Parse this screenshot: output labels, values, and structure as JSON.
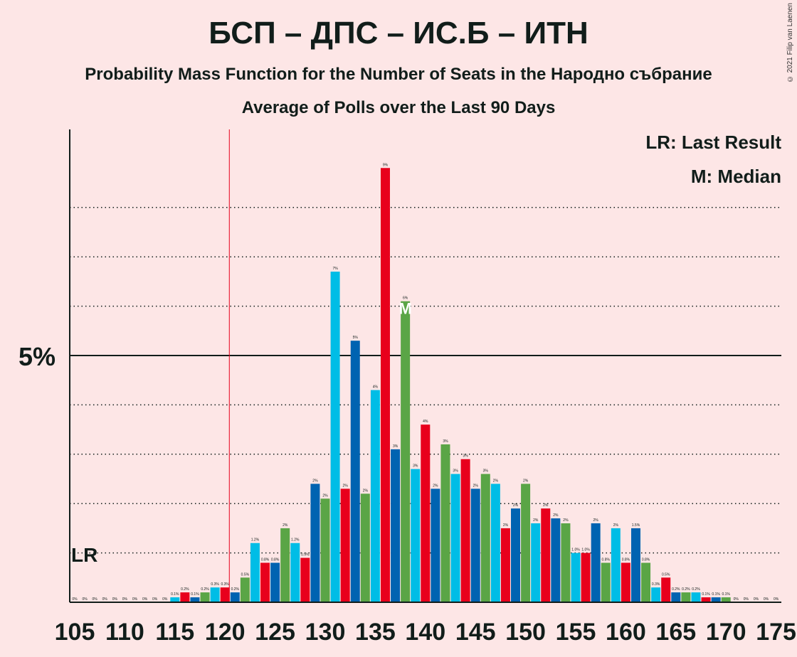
{
  "title": "БСП – ДПС – ИС.Б – ИТН",
  "subtitle": "Probability Mass Function for the Number of Seats in the Народно събрание",
  "subtitle2": "Average of Polls over the Last 90 Days",
  "copyright": "© 2021 Filip van Laenen",
  "legend": {
    "lr": "LR: Last Result",
    "median": "M: Median"
  },
  "colors": {
    "red": "#e8001c",
    "blue": "#0063b1",
    "cyan": "#00bde6",
    "green": "#5aa546",
    "background": "#fde6e6",
    "axis": "#111d1a",
    "last_result_line": "#e8001c"
  },
  "chart_data": {
    "type": "bar",
    "x": [
      105,
      106,
      107,
      108,
      109,
      110,
      111,
      112,
      113,
      114,
      115,
      116,
      117,
      118,
      119,
      120,
      121,
      122,
      123,
      124,
      125,
      126,
      127,
      128,
      129,
      130,
      131,
      132,
      133,
      134,
      135,
      136,
      137,
      138,
      139,
      140,
      141,
      142,
      143,
      144,
      145,
      146,
      147,
      148,
      149,
      150,
      151,
      152,
      153,
      154,
      155,
      156,
      157,
      158,
      159,
      160,
      161,
      162,
      163,
      164,
      165,
      166,
      167,
      168,
      169,
      170,
      171,
      172,
      173,
      174,
      175
    ],
    "values": [
      0,
      0,
      0,
      0,
      0,
      0,
      0,
      0,
      0,
      0,
      0.1,
      0.2,
      0.1,
      0.2,
      0.3,
      0.3,
      0.2,
      0.5,
      1.2,
      0.8,
      0.8,
      1.5,
      1.2,
      0.9,
      2.4,
      2.1,
      6.7,
      2.3,
      5.3,
      2.2,
      4.3,
      8.8,
      3.1,
      6.1,
      2.7,
      3.6,
      2.3,
      3.2,
      2.6,
      2.9,
      2.3,
      2.6,
      2.4,
      1.5,
      1.9,
      2.4,
      1.6,
      1.9,
      1.7,
      1.6,
      1.0,
      1.0,
      1.6,
      0.8,
      1.5,
      0.8,
      1.5,
      0.8,
      0.3,
      0.5,
      0.2,
      0.2,
      0.2,
      0.1,
      0.1,
      0.1,
      0,
      0,
      0,
      0,
      0
    ],
    "labels": [
      "0%",
      "0%",
      "0%",
      "0%",
      "0%",
      "0%",
      "0%",
      "0%",
      "0%",
      "0%",
      "0.1%",
      "0.2%",
      "0.1%",
      "0.2%",
      "0.3%",
      "0.3%",
      "0.2%",
      "0.5%",
      "1.2%",
      "0.8%",
      "0.8%",
      "2%",
      "1.2%",
      "0.9%",
      "2%",
      "2%",
      "7%",
      "2%",
      "5%",
      "2%",
      "4%",
      "9%",
      "3%",
      "6%",
      "3%",
      "4%",
      "2%",
      "3%",
      "3%",
      "3%",
      "2%",
      "3%",
      "2%",
      "2%",
      "2%",
      "2%",
      "2%",
      "2%",
      "2%",
      "2%",
      "1.0%",
      "1.0%",
      "2%",
      "0.8%",
      "2%",
      "0.8%",
      "1.5%",
      "0.8%",
      "0.3%",
      "0.5%",
      "0.2%",
      "0.2%",
      "0.2%",
      "0.1%",
      "0.1%",
      "0.1%",
      "0%",
      "0%",
      "0%",
      "0%",
      "0%"
    ],
    "colors": [
      "cyan",
      "blue",
      "green",
      "red",
      "cyan",
      "blue",
      "green",
      "red",
      "cyan",
      "blue",
      "cyan",
      "red",
      "blue",
      "green",
      "cyan",
      "red",
      "blue",
      "green",
      "cyan",
      "red",
      "blue",
      "green",
      "cyan",
      "red",
      "blue",
      "green",
      "cyan",
      "red",
      "blue",
      "green",
      "cyan",
      "red",
      "blue",
      "green",
      "cyan",
      "red",
      "blue",
      "green",
      "cyan",
      "red",
      "blue",
      "green",
      "cyan",
      "red",
      "blue",
      "green",
      "cyan",
      "red",
      "blue",
      "green",
      "cyan",
      "red",
      "blue",
      "green",
      "cyan",
      "red",
      "blue",
      "green",
      "cyan",
      "red",
      "blue",
      "green",
      "cyan",
      "red",
      "blue",
      "green",
      "cyan",
      "red",
      "blue",
      "green",
      "cyan"
    ],
    "xticks": [
      "105",
      "110",
      "115",
      "120",
      "125",
      "130",
      "135",
      "140",
      "145",
      "150",
      "155",
      "160",
      "165",
      "170",
      "175"
    ],
    "ytick_label": "5%",
    "ylim": [
      0,
      9.5
    ],
    "gridlines": [
      1,
      2,
      3,
      4,
      5,
      6,
      7,
      8
    ],
    "last_result": 121,
    "last_result_label": "LR",
    "median": 138,
    "median_label": "M"
  }
}
